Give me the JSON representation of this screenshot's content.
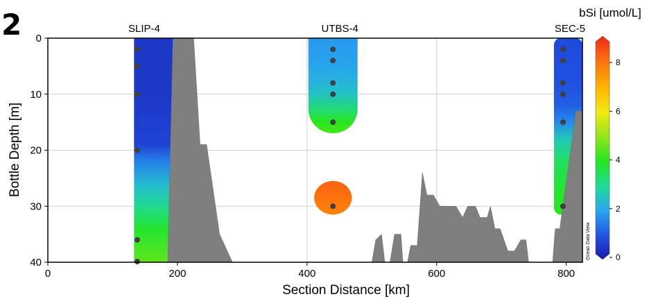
{
  "panel_label": "2",
  "watermark": "Ocean Data View",
  "chart_data": {
    "type": "heatmap",
    "title": "",
    "xlabel": "Section Distance [km]",
    "ylabel": "Bottle Depth [m]",
    "xlim": [
      0,
      825
    ],
    "ylim": [
      40,
      0
    ],
    "xticks": [
      0,
      200,
      400,
      600,
      800
    ],
    "yticks": [
      0,
      10,
      20,
      30,
      40
    ],
    "grid": true,
    "colorbar": {
      "label": "bSi [umol/L]",
      "range": [
        0,
        9
      ],
      "ticks": [
        0,
        2,
        4,
        6,
        8
      ]
    },
    "stations": [
      {
        "name": "SLIP-4",
        "x": 138,
        "depths": [
          2,
          5,
          10,
          20,
          36,
          40
        ]
      },
      {
        "name": "UTBS-4",
        "x": 440,
        "depths": [
          2,
          4,
          8,
          10,
          15,
          30
        ]
      },
      {
        "name": "SEC-5",
        "x": 795,
        "depths": [
          2,
          4,
          8,
          10,
          15,
          30
        ]
      }
    ],
    "fields": [
      {
        "station": "SLIP-4",
        "region": "column",
        "x_range": [
          133,
          195
        ],
        "depth_range": [
          0,
          40
        ],
        "profile": [
          [
            0,
            0.5
          ],
          [
            10,
            0.5
          ],
          [
            19,
            0.7
          ],
          [
            22,
            1.5
          ],
          [
            26,
            2.3
          ],
          [
            30,
            3.0
          ],
          [
            34,
            3.8
          ],
          [
            40,
            4.5
          ]
        ]
      },
      {
        "station": "UTBS-4",
        "region": "upper",
        "x_range": [
          402,
          478
        ],
        "depth_range": [
          0,
          17
        ],
        "profile": [
          [
            0,
            1.8
          ],
          [
            4,
            1.9
          ],
          [
            8,
            2.2
          ],
          [
            10,
            2.5
          ],
          [
            13,
            3.3
          ],
          [
            15,
            4.0
          ],
          [
            17,
            4.3
          ]
        ]
      },
      {
        "station": "UTBS-4",
        "region": "patch",
        "x_range": [
          411,
          469
        ],
        "depth_range": [
          25.5,
          31.5
        ],
        "profile": [
          [
            25.5,
            8.2
          ],
          [
            28,
            8.0
          ],
          [
            31.5,
            7.7
          ]
        ]
      },
      {
        "station": "SEC-5",
        "region": "column",
        "x_range": [
          781,
          825
        ],
        "depth_range": [
          0,
          31.5
        ],
        "profile": [
          [
            0,
            0.8
          ],
          [
            8,
            0.9
          ],
          [
            12,
            1.1
          ],
          [
            15,
            1.6
          ],
          [
            18,
            2.6
          ],
          [
            22,
            3.4
          ],
          [
            27,
            3.8
          ],
          [
            31.5,
            4.0
          ]
        ]
      }
    ],
    "bathymetry": [
      {
        "name": "ridge-1",
        "points": [
          [
            185,
            40
          ],
          [
            188,
            25
          ],
          [
            193,
            0
          ],
          [
            225,
            0
          ],
          [
            235,
            19
          ],
          [
            245,
            19
          ],
          [
            265,
            35
          ],
          [
            285,
            40
          ]
        ]
      },
      {
        "name": "ridge-2",
        "points": [
          [
            500,
            40
          ],
          [
            506,
            36
          ],
          [
            515,
            35
          ],
          [
            520,
            40
          ],
          [
            528,
            40
          ],
          [
            535,
            35
          ],
          [
            545,
            35
          ],
          [
            548,
            40
          ],
          [
            555,
            40
          ],
          [
            560,
            37
          ],
          [
            570,
            37
          ],
          [
            578,
            24
          ],
          [
            585,
            28
          ],
          [
            595,
            28
          ],
          [
            605,
            30
          ],
          [
            630,
            30
          ],
          [
            640,
            32
          ],
          [
            648,
            30
          ],
          [
            660,
            30
          ],
          [
            667,
            32
          ],
          [
            678,
            32
          ],
          [
            683,
            30
          ],
          [
            690,
            34
          ],
          [
            698,
            34
          ],
          [
            704,
            36
          ],
          [
            710,
            38
          ],
          [
            720,
            38
          ],
          [
            730,
            36
          ],
          [
            738,
            36
          ],
          [
            742,
            40
          ]
        ]
      },
      {
        "name": "ridge-3",
        "points": [
          [
            779,
            40
          ],
          [
            783,
            34
          ],
          [
            790,
            34
          ],
          [
            808,
            19
          ],
          [
            815,
            13
          ],
          [
            825,
            13
          ],
          [
            825,
            40
          ]
        ]
      }
    ]
  }
}
